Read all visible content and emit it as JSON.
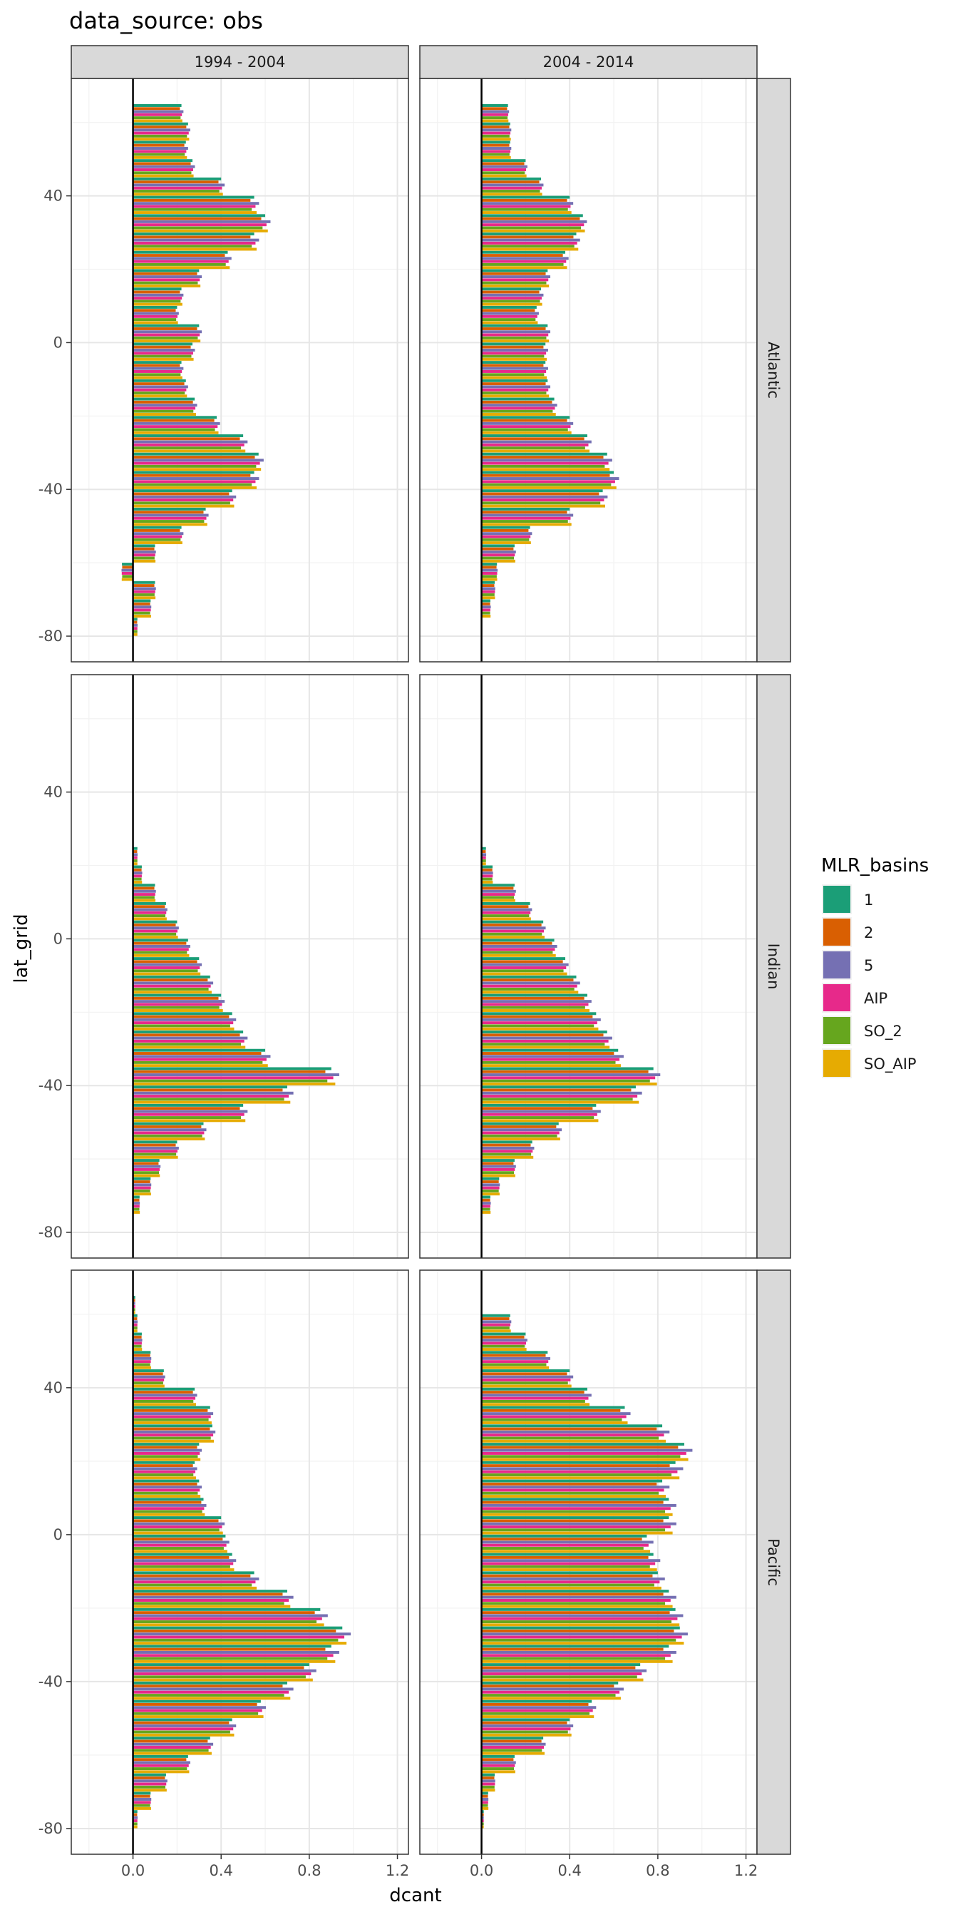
{
  "chart_data": {
    "type": "bar",
    "orientation": "horizontal",
    "title": "data_source: obs",
    "xlabel": "dcant",
    "ylabel": "lat_grid",
    "xlim": [
      -0.28,
      1.25
    ],
    "ylim": [
      -87,
      72
    ],
    "x_ticks": [
      0.0,
      0.4,
      0.8,
      1.2
    ],
    "x_tick_labels": [
      "0.0",
      "0.4",
      "0.8",
      "1.2"
    ],
    "y_ticks": [
      -80,
      -40,
      0,
      40
    ],
    "y_tick_labels": [
      "-80",
      "-40",
      "0",
      "40"
    ],
    "grid": true,
    "facet_columns": [
      "1994 - 2004",
      "2004 - 2014"
    ],
    "facet_rows": [
      "Atlantic",
      "Indian",
      "Pacific"
    ],
    "legend": {
      "title": "MLR_basins",
      "position": "right",
      "entries": [
        "1",
        "2",
        "5",
        "AIP",
        "SO_2",
        "SO_AIP"
      ],
      "colors": [
        "#1B9E77",
        "#D95F02",
        "#7570B3",
        "#E7298A",
        "#66A61E",
        "#E6AB02"
      ]
    },
    "lat_bin_width": 5,
    "note": "values estimated from chart; each lat_grid bin holds 6 bars ordered 1, 2, 5, AIP, SO_2, SO_AIP; one profile value per lat bin, with small per-basin multipliers",
    "basin_multipliers": [
      1.0,
      0.97,
      1.04,
      1.01,
      0.98,
      1.02
    ],
    "panels": [
      {
        "row": "Atlantic",
        "col": "1994 - 2004",
        "lat": [
          62.5,
          57.5,
          52.5,
          47.5,
          42.5,
          37.5,
          32.5,
          27.5,
          22.5,
          17.5,
          12.5,
          7.5,
          2.5,
          -2.5,
          -7.5,
          -12.5,
          -17.5,
          -22.5,
          -27.5,
          -32.5,
          -37.5,
          -42.5,
          -47.5,
          -52.5,
          -57.5,
          -62.5,
          -67.5,
          -72.5,
          -77.5
        ],
        "profile": [
          0.22,
          0.25,
          0.24,
          0.27,
          0.4,
          0.55,
          0.6,
          0.55,
          0.43,
          0.3,
          0.22,
          0.2,
          0.3,
          0.27,
          0.22,
          0.24,
          0.28,
          0.38,
          0.5,
          0.57,
          0.55,
          0.45,
          0.33,
          0.22,
          0.1,
          -0.05,
          0.1,
          0.08,
          0.02
        ]
      },
      {
        "row": "Atlantic",
        "col": "2004 - 2014",
        "lat": [
          62.5,
          57.5,
          52.5,
          47.5,
          42.5,
          37.5,
          32.5,
          27.5,
          22.5,
          17.5,
          12.5,
          7.5,
          2.5,
          -2.5,
          -7.5,
          -12.5,
          -17.5,
          -22.5,
          -27.5,
          -32.5,
          -37.5,
          -42.5,
          -47.5,
          -52.5,
          -57.5,
          -62.5,
          -67.5,
          -72.5,
          -77.5
        ],
        "profile": [
          0.12,
          0.13,
          0.13,
          0.2,
          0.27,
          0.4,
          0.46,
          0.43,
          0.38,
          0.3,
          0.27,
          0.25,
          0.3,
          0.29,
          0.29,
          0.3,
          0.33,
          0.4,
          0.48,
          0.57,
          0.6,
          0.55,
          0.4,
          0.22,
          0.15,
          0.07,
          0.06,
          0.04,
          0.0
        ]
      },
      {
        "row": "Indian",
        "col": "1994 - 2004",
        "lat": [
          22.5,
          17.5,
          12.5,
          7.5,
          2.5,
          -2.5,
          -7.5,
          -12.5,
          -17.5,
          -22.5,
          -27.5,
          -32.5,
          -37.5,
          -42.5,
          -47.5,
          -52.5,
          -57.5,
          -62.5,
          -67.5,
          -72.5
        ],
        "profile": [
          0.02,
          0.04,
          0.1,
          0.15,
          0.2,
          0.25,
          0.3,
          0.35,
          0.4,
          0.45,
          0.5,
          0.6,
          0.9,
          0.7,
          0.5,
          0.32,
          0.2,
          0.12,
          0.08,
          0.03
        ]
      },
      {
        "row": "Indian",
        "col": "2004 - 2014",
        "lat": [
          22.5,
          17.5,
          12.5,
          7.5,
          2.5,
          -2.5,
          -7.5,
          -12.5,
          -17.5,
          -22.5,
          -27.5,
          -32.5,
          -37.5,
          -42.5,
          -47.5,
          -52.5,
          -57.5,
          -62.5,
          -67.5,
          -72.5
        ],
        "profile": [
          0.02,
          0.05,
          0.15,
          0.22,
          0.28,
          0.33,
          0.38,
          0.43,
          0.48,
          0.52,
          0.57,
          0.62,
          0.78,
          0.7,
          0.52,
          0.35,
          0.23,
          0.15,
          0.08,
          0.04
        ]
      },
      {
        "row": "Pacific",
        "col": "1994 - 2004",
        "lat": [
          62.5,
          57.5,
          52.5,
          47.5,
          42.5,
          37.5,
          32.5,
          27.5,
          22.5,
          17.5,
          12.5,
          7.5,
          2.5,
          -2.5,
          -7.5,
          -12.5,
          -17.5,
          -22.5,
          -27.5,
          -32.5,
          -37.5,
          -42.5,
          -47.5,
          -52.5,
          -57.5,
          -62.5,
          -67.5,
          -72.5,
          -77.5
        ],
        "profile": [
          0.01,
          0.02,
          0.04,
          0.08,
          0.14,
          0.28,
          0.35,
          0.36,
          0.3,
          0.28,
          0.3,
          0.32,
          0.4,
          0.42,
          0.45,
          0.55,
          0.7,
          0.85,
          0.95,
          0.9,
          0.8,
          0.7,
          0.58,
          0.45,
          0.35,
          0.25,
          0.15,
          0.08,
          0.02
        ]
      },
      {
        "row": "Pacific",
        "col": "2004 - 2014",
        "lat": [
          62.5,
          57.5,
          52.5,
          47.5,
          42.5,
          37.5,
          32.5,
          27.5,
          22.5,
          17.5,
          12.5,
          7.5,
          2.5,
          -2.5,
          -7.5,
          -12.5,
          -17.5,
          -22.5,
          -27.5,
          -32.5,
          -37.5,
          -42.5,
          -47.5,
          -52.5,
          -57.5,
          -62.5,
          -67.5,
          -72.5,
          -77.5
        ],
        "profile": [
          0.0,
          0.13,
          0.2,
          0.3,
          0.4,
          0.48,
          0.65,
          0.82,
          0.92,
          0.88,
          0.82,
          0.85,
          0.85,
          0.75,
          0.78,
          0.8,
          0.85,
          0.88,
          0.9,
          0.85,
          0.72,
          0.62,
          0.5,
          0.4,
          0.28,
          0.15,
          0.06,
          0.03,
          0.01
        ]
      }
    ]
  }
}
